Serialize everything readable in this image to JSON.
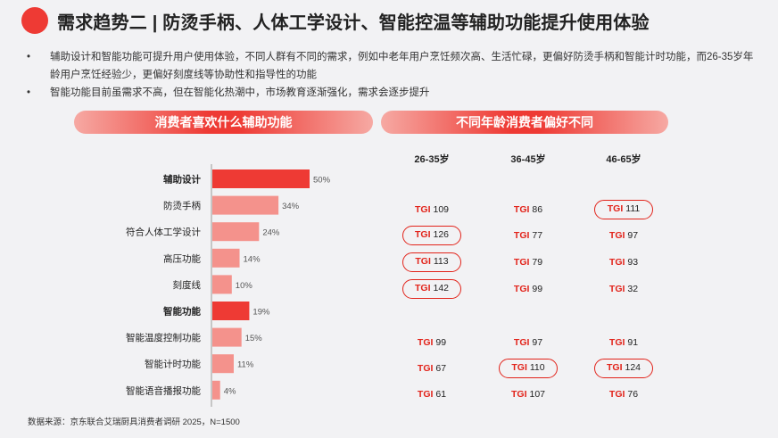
{
  "header": {
    "title": "需求趋势二 | 防烫手柄、人体工学设计、智能控温等辅助功能提升使用体验"
  },
  "bullets": [
    "辅助设计和智能功能可提升用户使用体验，不同人群有不同的需求，例如中老年用户烹饪频次高、生活忙碌，更偏好防烫手柄和智能计时功能，而26-35岁年龄用户烹饪经验少，更偏好刻度线等协助性和指导性的功能",
    "智能功能目前虽需求不高，但在智能化热潮中，市场教育逐渐强化，需求会逐步提升"
  ],
  "left_banner": "消费者喜欢什么辅助功能",
  "right_banner": "不同年龄消费者偏好不同",
  "colors": {
    "accent": "#ee3a34",
    "bar_light": "#f4928c",
    "tgi_red": "#e2231a"
  },
  "chart_data": {
    "type": "bar",
    "orientation": "horizontal",
    "categories": [
      "辅助设计",
      "防烫手柄",
      "符合人体工学设计",
      "高压功能",
      "刻度线",
      "智能功能",
      "智能温度控制功能",
      "智能计时功能",
      "智能语音播报功能"
    ],
    "bold_categories": [
      "辅助设计",
      "智能功能"
    ],
    "values": [
      50,
      34,
      24,
      14,
      10,
      19,
      15,
      11,
      4
    ],
    "labels": [
      "50%",
      "34%",
      "24%",
      "14%",
      "10%",
      "19%",
      "15%",
      "11%",
      "4%"
    ],
    "unit": "%"
  },
  "tgi_table": {
    "prefix": "TGI",
    "columns": [
      "26-35岁",
      "36-45岁",
      "46-65岁"
    ],
    "rows": [
      {
        "category": "防烫手柄",
        "values": [
          "109",
          "86",
          "111"
        ],
        "highlight": [
          false,
          false,
          true
        ]
      },
      {
        "category": "符合人体工学设计",
        "values": [
          "126",
          "77",
          "97"
        ],
        "highlight": [
          true,
          false,
          false
        ]
      },
      {
        "category": "高压功能",
        "values": [
          "113",
          "79",
          "93"
        ],
        "highlight": [
          true,
          false,
          false
        ]
      },
      {
        "category": "刻度线",
        "values": [
          "142",
          "99",
          "32"
        ],
        "highlight": [
          true,
          false,
          false
        ]
      },
      {
        "category": "智能温度控制功能",
        "values": [
          "99",
          "97",
          "91"
        ],
        "highlight": [
          false,
          false,
          false
        ]
      },
      {
        "category": "智能计时功能",
        "values": [
          "67",
          "110",
          "124"
        ],
        "highlight": [
          false,
          true,
          true
        ]
      },
      {
        "category": "智能语音播报功能",
        "values": [
          "61",
          "107",
          "76"
        ],
        "highlight": [
          false,
          false,
          false
        ]
      }
    ]
  },
  "source": "数据来源：京东联合艾瑞厨具消费者调研 2025，N=1500"
}
